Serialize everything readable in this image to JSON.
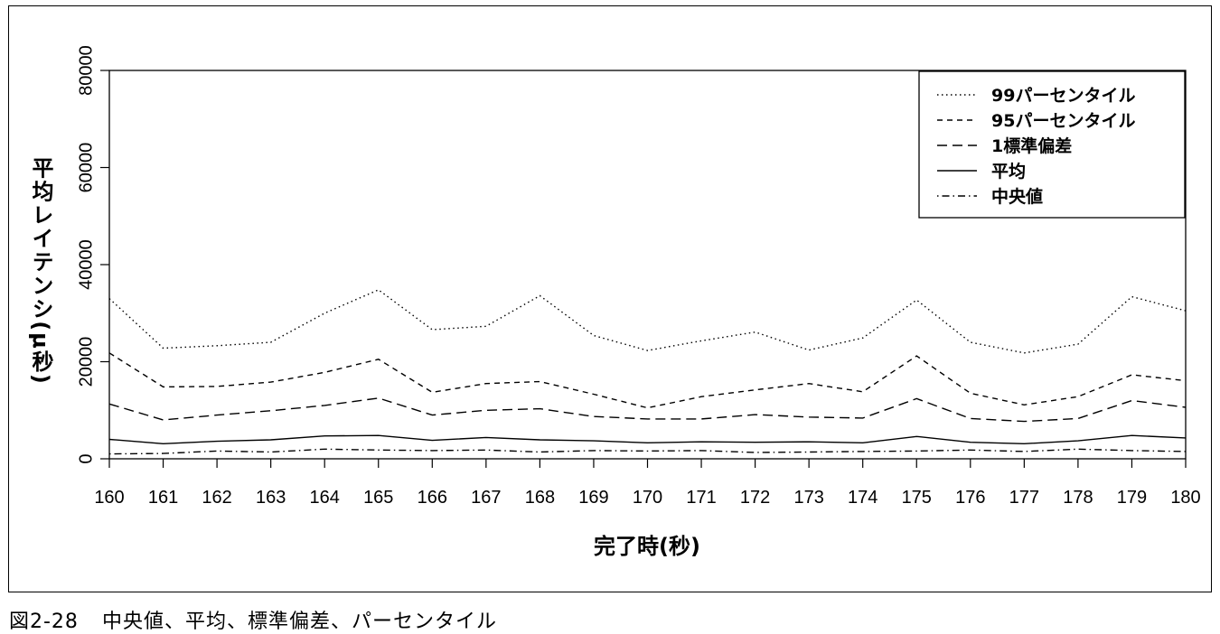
{
  "caption": {
    "number": "図2-28",
    "text": "中央値、平均、標準偏差、パーセンタイル"
  },
  "chart_data": {
    "type": "line",
    "xlabel": "完了時(秒)",
    "ylabel": "平均レイテンシ(μ秒)",
    "xlim": [
      160,
      180
    ],
    "ylim": [
      0,
      80000
    ],
    "x": [
      160,
      161,
      162,
      163,
      164,
      165,
      166,
      167,
      168,
      169,
      170,
      171,
      172,
      173,
      174,
      175,
      176,
      177,
      178,
      179,
      180
    ],
    "y_ticks": [
      0,
      20000,
      40000,
      60000,
      80000
    ],
    "y_tick_labels": [
      "0",
      "20000",
      "40000",
      "60000",
      "80000"
    ],
    "grid": false,
    "legend_position": "top-right",
    "series": [
      {
        "name": "99パーセンタイル",
        "line_style": "dotted",
        "values": [
          33000,
          22800,
          23300,
          24000,
          30000,
          34800,
          26600,
          27300,
          33600,
          25400,
          22300,
          24300,
          26100,
          22400,
          24900,
          32700,
          24000,
          21800,
          23600,
          33400,
          30500
        ]
      },
      {
        "name": "95パーセンタイル",
        "line_style": "dashed",
        "values": [
          21800,
          14800,
          14900,
          15800,
          17800,
          20500,
          13700,
          15500,
          15900,
          13300,
          10500,
          12800,
          14200,
          15500,
          13800,
          21200,
          13500,
          11100,
          12800,
          17300,
          16100
        ]
      },
      {
        "name": "1標準偏差",
        "line_style": "longdash",
        "values": [
          11300,
          8000,
          9000,
          9900,
          11000,
          12500,
          9000,
          10000,
          10300,
          8700,
          8200,
          8200,
          9100,
          8600,
          8400,
          12400,
          8300,
          7700,
          8300,
          12000,
          10600
        ]
      },
      {
        "name": "平均",
        "line_style": "solid",
        "values": [
          4000,
          3100,
          3600,
          3900,
          4700,
          4800,
          3800,
          4400,
          3900,
          3700,
          3300,
          3500,
          3400,
          3500,
          3300,
          4600,
          3400,
          3100,
          3700,
          4800,
          4300
        ]
      },
      {
        "name": "中央値",
        "line_style": "dotdash",
        "values": [
          1000,
          1100,
          1600,
          1400,
          2000,
          1800,
          1700,
          1800,
          1400,
          1700,
          1600,
          1700,
          1300,
          1400,
          1500,
          1600,
          1800,
          1500,
          2000,
          1700,
          1500
        ]
      }
    ]
  }
}
